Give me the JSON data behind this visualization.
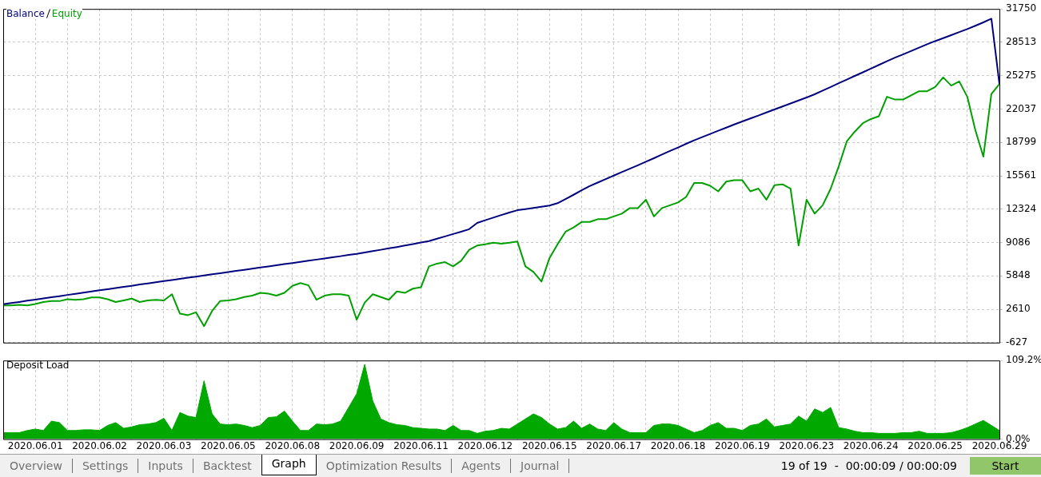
{
  "chart_data": [
    {
      "type": "line",
      "legend": "top left",
      "grid": true,
      "tick_labels": "y",
      "categories": [
        null,
        null,
        null,
        null,
        "2020.06.01",
        null,
        null,
        null,
        null,
        null,
        null,
        null,
        "2020.06.02",
        null,
        null,
        null,
        null,
        null,
        null,
        null,
        "2020.06.03",
        null,
        null,
        null,
        null,
        null,
        null,
        null,
        "2020.06.05",
        null,
        null,
        null,
        null,
        null,
        null,
        null,
        "2020.06.08",
        null,
        null,
        null,
        null,
        null,
        null,
        null,
        "2020.06.09",
        null,
        null,
        null,
        null,
        null,
        null,
        null,
        "2020.06.11",
        null,
        null,
        null,
        null,
        null,
        null,
        null,
        "2020.06.12",
        null,
        null,
        null,
        null,
        null,
        null,
        null,
        "2020.06.15",
        null,
        null,
        null,
        null,
        null,
        null,
        null,
        "2020.06.17",
        null,
        null,
        null,
        null,
        null,
        null,
        null,
        "2020.06.18",
        null,
        null,
        null,
        null,
        null,
        null,
        null,
        "2020.06.19",
        null,
        null,
        null,
        null,
        null,
        null,
        null,
        "2020.06.23",
        null,
        null,
        null,
        null,
        null,
        null,
        null,
        "2020.06.24",
        null,
        null,
        null,
        null,
        null,
        null,
        null,
        "2020.06.25",
        null,
        null,
        null,
        null,
        null,
        null,
        null,
        "2020.06.29"
      ],
      "ylim": [
        -627,
        31750
      ],
      "yticks": [
        31750,
        28513,
        25275,
        22037,
        18799,
        15561,
        12324,
        9086,
        5848,
        2610,
        -627
      ],
      "series": [
        {
          "name": "Balance",
          "color": "#00007f",
          "values": [
            3100,
            3210,
            3320,
            3440,
            3550,
            3660,
            3770,
            3880,
            4000,
            4110,
            4220,
            4330,
            4450,
            4560,
            4670,
            4780,
            4890,
            5010,
            5120,
            5230,
            5340,
            5450,
            5560,
            5670,
            5780,
            5890,
            6000,
            6110,
            6220,
            6330,
            6440,
            6550,
            6660,
            6770,
            6880,
            6990,
            7100,
            7210,
            7320,
            7430,
            7540,
            7650,
            7760,
            7880,
            7980,
            8110,
            8250,
            8380,
            8520,
            8650,
            8790,
            8930,
            9090,
            9230,
            9450,
            9680,
            9910,
            10140,
            10380,
            10990,
            11250,
            11500,
            11750,
            12000,
            12220,
            12330,
            12440,
            12560,
            12670,
            12900,
            13300,
            13720,
            14150,
            14560,
            14900,
            15240,
            15580,
            15920,
            16250,
            16580,
            16930,
            17270,
            17620,
            17970,
            18310,
            18660,
            19000,
            19310,
            19620,
            19930,
            20230,
            20540,
            20830,
            21120,
            21410,
            21710,
            22000,
            22290,
            22580,
            22870,
            23160,
            23470,
            23830,
            24180,
            24540,
            24900,
            25250,
            25600,
            25960,
            26320,
            26680,
            27020,
            27340,
            27670,
            27990,
            28320,
            28630,
            28920,
            29210,
            29510,
            29800,
            30120,
            30450,
            30800,
            24460
          ]
        },
        {
          "name": "Equity",
          "color": "#00a000",
          "values": [
            2990,
            2990,
            3040,
            2990,
            3120,
            3310,
            3400,
            3400,
            3580,
            3530,
            3580,
            3750,
            3750,
            3580,
            3310,
            3470,
            3640,
            3310,
            3470,
            3530,
            3470,
            4070,
            2180,
            2040,
            2310,
            970,
            2440,
            3400,
            3470,
            3580,
            3800,
            3930,
            4200,
            4120,
            3930,
            4200,
            4880,
            5150,
            4930,
            3530,
            3930,
            4070,
            4070,
            3930,
            1600,
            3260,
            4070,
            3800,
            3530,
            4340,
            4200,
            4610,
            4740,
            6770,
            7040,
            7180,
            6770,
            7310,
            8380,
            8790,
            8920,
            9060,
            8980,
            9060,
            9190,
            6770,
            6230,
            5300,
            7580,
            8920,
            10140,
            10550,
            11080,
            11080,
            11350,
            11350,
            11620,
            11890,
            12430,
            12430,
            13240,
            11620,
            12430,
            12700,
            12970,
            13510,
            14860,
            14860,
            14590,
            14050,
            15000,
            15130,
            15130,
            14050,
            14320,
            13240,
            14650,
            14730,
            14320,
            8800,
            13240,
            11890,
            12700,
            14320,
            16480,
            18900,
            19850,
            20660,
            21070,
            21340,
            23230,
            22960,
            22960,
            23370,
            23770,
            23770,
            24180,
            25110,
            24310,
            24720,
            23230,
            20000,
            17420,
            23500,
            24460
          ]
        }
      ]
    },
    {
      "type": "area",
      "title": "Deposit Load",
      "grid": "x",
      "color": "#00a800",
      "categories": [
        null,
        null,
        null,
        null,
        "2020.06.01",
        null,
        null,
        null,
        null,
        null,
        null,
        null,
        "2020.06.02",
        null,
        null,
        null,
        null,
        null,
        null,
        null,
        "2020.06.03",
        null,
        null,
        null,
        null,
        null,
        null,
        null,
        "2020.06.05",
        null,
        null,
        null,
        null,
        null,
        null,
        null,
        "2020.06.08",
        null,
        null,
        null,
        null,
        null,
        null,
        null,
        "2020.06.09",
        null,
        null,
        null,
        null,
        null,
        null,
        null,
        "2020.06.11",
        null,
        null,
        null,
        null,
        null,
        null,
        null,
        "2020.06.12",
        null,
        null,
        null,
        null,
        null,
        null,
        null,
        "2020.06.15",
        null,
        null,
        null,
        null,
        null,
        null,
        null,
        "2020.06.17",
        null,
        null,
        null,
        null,
        null,
        null,
        null,
        "2020.06.18",
        null,
        null,
        null,
        null,
        null,
        null,
        null,
        "2020.06.19",
        null,
        null,
        null,
        null,
        null,
        null,
        null,
        "2020.06.23",
        null,
        null,
        null,
        null,
        null,
        null,
        null,
        "2020.06.24",
        null,
        null,
        null,
        null,
        null,
        null,
        null,
        "2020.06.25",
        null,
        null,
        null,
        null,
        null,
        null,
        null,
        "2020.06.29"
      ],
      "ylim": [
        0,
        109.2
      ],
      "yticks": [
        {
          "value": 109.2,
          "label": "109.2%"
        },
        {
          "value": 0,
          "label": "0.0%"
        }
      ],
      "values": [
        9,
        9,
        9,
        12,
        14,
        12,
        25,
        23,
        12,
        12,
        13,
        13,
        12,
        19,
        23,
        15,
        17,
        20,
        21,
        23,
        29,
        12,
        37,
        32,
        30,
        81,
        35,
        21,
        20,
        21,
        19,
        16,
        19,
        30,
        31,
        39,
        25,
        12,
        12,
        21,
        20,
        21,
        25,
        44,
        63,
        104,
        53,
        28,
        23,
        20,
        19,
        16,
        15,
        14,
        14,
        12,
        19,
        12,
        12,
        8,
        11,
        12,
        15,
        14,
        21,
        28,
        35,
        30,
        21,
        14,
        16,
        25,
        15,
        21,
        14,
        12,
        23,
        14,
        9,
        9,
        9,
        19,
        21,
        21,
        19,
        14,
        9,
        12,
        19,
        23,
        15,
        15,
        12,
        19,
        21,
        28,
        17,
        19,
        21,
        32,
        25,
        42,
        37,
        44,
        16,
        14,
        11,
        9,
        9,
        8,
        8,
        8,
        9,
        9,
        11,
        8,
        8,
        8,
        9,
        12,
        16,
        21,
        26,
        19,
        12
      ],
      "annotations": [
        "Overview",
        "Settings",
        "Inputs",
        "Backtest",
        "Graph",
        "Optimization Results",
        "Agents",
        "Journal",
        "19 of 19  -  00:00:09 / 00:00:09",
        "Start"
      ]
    }
  ]
}
